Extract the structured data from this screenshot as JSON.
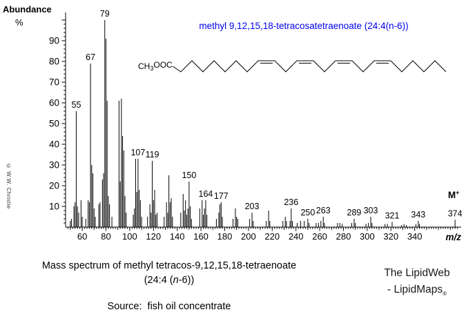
{
  "y_axis": {
    "title": "Abundance",
    "unit": "%",
    "tick_labels": [
      10,
      20,
      30,
      40,
      50,
      60,
      70,
      80,
      90
    ]
  },
  "x_axis": {
    "label": "m/z",
    "tick_labels": [
      60,
      80,
      100,
      120,
      140,
      160,
      180,
      200,
      220,
      240,
      260,
      280,
      300,
      320,
      340
    ]
  },
  "compound_title": "methyl 9,12,15,18-tetracosatetraenoate (24:4(n-6))",
  "title_color": "#0000ee",
  "structure": {
    "ester_prefix": "CH",
    "ester_subscript": "3",
    "ester_suffix": "OOC"
  },
  "molecular_ion": {
    "symbol": "M",
    "superscript": "+",
    "mz": 374
  },
  "watermark": "© W.W. Christie",
  "chart_data": {
    "type": "bar",
    "title": "methyl 9,12,15,18-tetracosatetraenoate (24:4(n-6))",
    "xlabel": "m/z",
    "ylabel": "Abundance %",
    "xlim": [
      46,
      380
    ],
    "ylim": [
      0,
      100
    ],
    "grid": false,
    "x_ticks": [
      60,
      80,
      100,
      120,
      140,
      160,
      180,
      200,
      220,
      240,
      260,
      280,
      300,
      320,
      340
    ],
    "y_ticks": [
      10,
      20,
      30,
      40,
      50,
      60,
      70,
      80,
      90
    ],
    "peak_labels": [
      55,
      67,
      79,
      107,
      119,
      150,
      164,
      177,
      203,
      236,
      250,
      263,
      289,
      303,
      321,
      343,
      374
    ],
    "molecular_ion_mz": 374,
    "peaks": [
      [
        50,
        3
      ],
      [
        51,
        4
      ],
      [
        53,
        10
      ],
      [
        54,
        12
      ],
      [
        55,
        56
      ],
      [
        56,
        10
      ],
      [
        57,
        7
      ],
      [
        59,
        13
      ],
      [
        60,
        5
      ],
      [
        63,
        4
      ],
      [
        65,
        13
      ],
      [
        66,
        12
      ],
      [
        67,
        79
      ],
      [
        68,
        30
      ],
      [
        69,
        26
      ],
      [
        70,
        9
      ],
      [
        71,
        5
      ],
      [
        74,
        11
      ],
      [
        75,
        12
      ],
      [
        77,
        23
      ],
      [
        78,
        26
      ],
      [
        79,
        100
      ],
      [
        80,
        91
      ],
      [
        81,
        61
      ],
      [
        82,
        15
      ],
      [
        83,
        11
      ],
      [
        85,
        5
      ],
      [
        91,
        61
      ],
      [
        92,
        22
      ],
      [
        93,
        62
      ],
      [
        94,
        44
      ],
      [
        95,
        37
      ],
      [
        96,
        15
      ],
      [
        97,
        7
      ],
      [
        103,
        6
      ],
      [
        104,
        9
      ],
      [
        105,
        33
      ],
      [
        106,
        17
      ],
      [
        107,
        33
      ],
      [
        108,
        18
      ],
      [
        109,
        13
      ],
      [
        110,
        5
      ],
      [
        115,
        5
      ],
      [
        117,
        11
      ],
      [
        118,
        7
      ],
      [
        119,
        32
      ],
      [
        120,
        13
      ],
      [
        121,
        18
      ],
      [
        122,
        6
      ],
      [
        123,
        7
      ],
      [
        129,
        5
      ],
      [
        131,
        12
      ],
      [
        132,
        7
      ],
      [
        133,
        25
      ],
      [
        134,
        12
      ],
      [
        135,
        14
      ],
      [
        136,
        5
      ],
      [
        143,
        7
      ],
      [
        145,
        16
      ],
      [
        146,
        8
      ],
      [
        147,
        13
      ],
      [
        148,
        6
      ],
      [
        149,
        9
      ],
      [
        150,
        22
      ],
      [
        151,
        10
      ],
      [
        152,
        4
      ],
      [
        159,
        9
      ],
      [
        161,
        13
      ],
      [
        162,
        6
      ],
      [
        163,
        9
      ],
      [
        164,
        13
      ],
      [
        165,
        6
      ],
      [
        173,
        4
      ],
      [
        175,
        7
      ],
      [
        176,
        11
      ],
      [
        177,
        12
      ],
      [
        178,
        5
      ],
      [
        187,
        4
      ],
      [
        189,
        9
      ],
      [
        190,
        5
      ],
      [
        191,
        4
      ],
      [
        201,
        4
      ],
      [
        203,
        7
      ],
      [
        204,
        3
      ],
      [
        215,
        3
      ],
      [
        217,
        8
      ],
      [
        218,
        3
      ],
      [
        229,
        3
      ],
      [
        231,
        5
      ],
      [
        232,
        3
      ],
      [
        235,
        3
      ],
      [
        236,
        9
      ],
      [
        237,
        3
      ],
      [
        241,
        2
      ],
      [
        244,
        3
      ],
      [
        247,
        3
      ],
      [
        250,
        4
      ],
      [
        251,
        2
      ],
      [
        257,
        2
      ],
      [
        259,
        2
      ],
      [
        261,
        3
      ],
      [
        263,
        5
      ],
      [
        264,
        2
      ],
      [
        275,
        2
      ],
      [
        277,
        2
      ],
      [
        279,
        1.5
      ],
      [
        287,
        2
      ],
      [
        289,
        4
      ],
      [
        290,
        2
      ],
      [
        299,
        1.5
      ],
      [
        301,
        2
      ],
      [
        303,
        5
      ],
      [
        304,
        2
      ],
      [
        315,
        1.5
      ],
      [
        317,
        1.5
      ],
      [
        321,
        2.5
      ],
      [
        329,
        1
      ],
      [
        331,
        1.5
      ],
      [
        333,
        1
      ],
      [
        341,
        1.5
      ],
      [
        343,
        3
      ],
      [
        344,
        1.5
      ],
      [
        374,
        3.5
      ]
    ]
  },
  "captions": {
    "caption_line1": "Mass spectrum of methyl tetracos-9,12,15,18-tetraenoate",
    "caption_line2_pre": "(24:4 (",
    "caption_line2_italic": "n",
    "caption_line2_post": "-6))",
    "source": "Source:  fish oil concentrate",
    "brand_line1": "The LipidWeb",
    "brand_line2_pre": "- LipidMaps",
    "brand_line2_mark": "®"
  }
}
